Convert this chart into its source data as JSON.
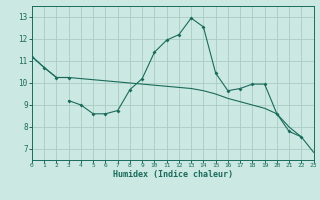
{
  "xlabel": "Humidex (Indice chaleur)",
  "bg_color": "#cce8e2",
  "grid_color": "#aaccC4",
  "line_color": "#1a6b5c",
  "xlim": [
    0,
    23
  ],
  "ylim": [
    6.5,
    13.5
  ],
  "yticks": [
    7,
    8,
    9,
    10,
    11,
    12,
    13
  ],
  "xticks": [
    0,
    1,
    2,
    3,
    4,
    5,
    6,
    7,
    8,
    9,
    10,
    11,
    12,
    13,
    14,
    15,
    16,
    17,
    18,
    19,
    20,
    21,
    22,
    23
  ],
  "curve1_x": [
    0,
    1,
    2,
    3
  ],
  "curve1_y": [
    11.2,
    10.7,
    10.25,
    10.25
  ],
  "curve2_x": [
    3,
    4,
    5,
    6,
    7,
    8,
    9,
    10,
    11,
    12,
    13,
    14,
    15,
    16,
    17,
    18,
    19,
    20,
    21,
    22
  ],
  "curve2_y": [
    9.2,
    9.0,
    8.6,
    8.6,
    8.75,
    9.7,
    10.2,
    11.4,
    11.95,
    12.2,
    12.95,
    12.55,
    10.45,
    9.65,
    9.75,
    9.95,
    9.95,
    8.6,
    7.8,
    7.55
  ],
  "curve3_x": [
    0,
    1,
    2,
    3,
    4,
    5,
    6,
    7,
    8,
    9,
    10,
    11,
    12,
    13,
    14,
    15,
    16,
    17,
    18,
    19,
    20,
    21,
    22,
    23
  ],
  "curve3_y": [
    11.2,
    10.7,
    10.25,
    10.25,
    10.2,
    10.15,
    10.1,
    10.05,
    10.0,
    9.95,
    9.9,
    9.85,
    9.8,
    9.75,
    9.65,
    9.5,
    9.3,
    9.15,
    9.0,
    8.85,
    8.6,
    8.0,
    7.55,
    6.85
  ]
}
